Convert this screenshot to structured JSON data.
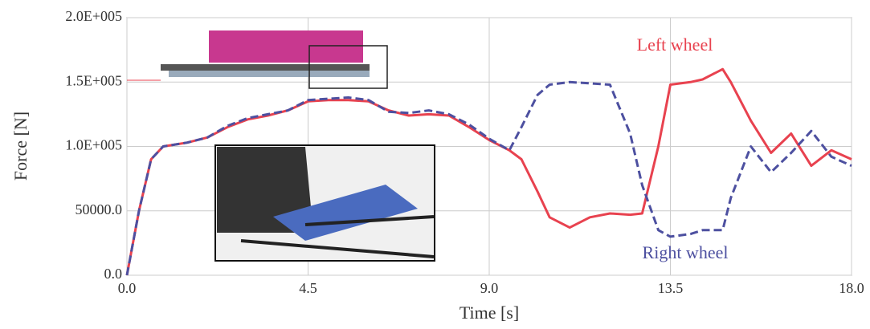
{
  "chart_data": {
    "type": "line",
    "x_label": "Time [s]",
    "y_label": "Force [N]",
    "x": [
      0,
      0.3,
      0.6,
      0.9,
      1.5,
      2,
      2.5,
      3,
      3.5,
      4,
      4.5,
      5,
      5.5,
      6,
      6.5,
      7,
      7.5,
      8,
      8.5,
      9,
      9.5,
      9.8,
      10.2,
      10.5,
      11,
      11.5,
      12,
      12.5,
      12.8,
      13.2,
      13.5,
      14,
      14.3,
      14.8,
      15,
      15.5,
      16,
      16.5,
      17,
      17.5,
      18
    ],
    "series": [
      {
        "name": "Left wheel",
        "color": "#e8424f",
        "dash": false,
        "values": [
          0,
          50000,
          90000,
          100000,
          103000,
          107000,
          115000,
          121000,
          124000,
          128000,
          135000,
          136000,
          136000,
          135000,
          128000,
          124000,
          125000,
          124000,
          115000,
          105000,
          97000,
          90000,
          65000,
          45000,
          37000,
          45000,
          48000,
          47000,
          48000,
          100000,
          148000,
          150000,
          152000,
          160000,
          150000,
          120000,
          95000,
          110000,
          85000,
          97000,
          90000
        ]
      },
      {
        "name": "Right wheel",
        "color": "#4d50a0",
        "dash": true,
        "values": [
          0,
          50000,
          90000,
          100000,
          103000,
          107000,
          116000,
          122000,
          125000,
          128000,
          136000,
          137000,
          138000,
          136000,
          127000,
          126000,
          128000,
          125000,
          117000,
          106000,
          97000,
          115000,
          140000,
          148000,
          150000,
          149000,
          148000,
          110000,
          70000,
          35000,
          30000,
          32000,
          35000,
          35000,
          60000,
          100000,
          80000,
          95000,
          112000,
          92000,
          85000
        ]
      }
    ],
    "xlim": [
      0,
      18
    ],
    "ylim": [
      0,
      200000
    ],
    "xticks": [
      {
        "value": 0,
        "label": "0.0"
      },
      4.5,
      {
        "value": 9,
        "label": "9.0"
      },
      13.5,
      {
        "value": 18,
        "label": "18.0"
      }
    ],
    "yticks": [
      {
        "value": 0,
        "label": "0.0"
      },
      {
        "value": 50000,
        "label": "50000.0"
      },
      {
        "value": 100000,
        "label": "1.0E+005"
      },
      {
        "value": 150000,
        "label": "1.5E+005"
      },
      {
        "value": 200000,
        "label": "2.0E+005"
      }
    ],
    "grid": true
  }
}
